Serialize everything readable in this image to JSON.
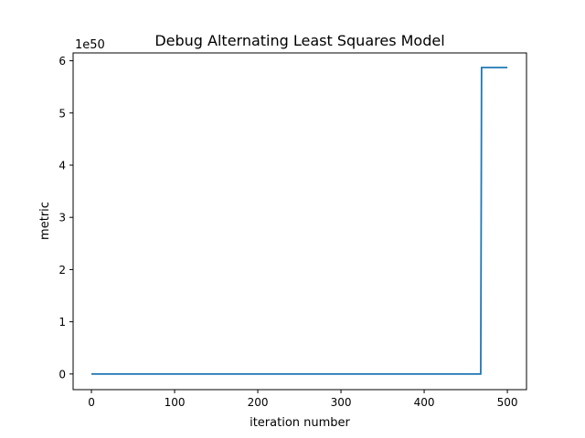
{
  "chart_data": {
    "type": "line",
    "title": "Debug Alternating Least Squares Model",
    "xlabel": "iteration number",
    "ylabel": "metric",
    "y_offset_label": "1e50",
    "xlim": [
      -22,
      523
    ],
    "ylim": [
      -0.3,
      6.15
    ],
    "x_ticks": [
      0,
      100,
      200,
      300,
      400,
      500
    ],
    "x_tick_labels": [
      "0",
      "100",
      "200",
      "300",
      "400",
      "500"
    ],
    "y_ticks": [
      0,
      1,
      2,
      3,
      4,
      5,
      6
    ],
    "y_tick_labels": [
      "0",
      "1",
      "2",
      "3",
      "4",
      "5",
      "6"
    ],
    "grid": false,
    "series": [
      {
        "color": "#1f77b4",
        "x": [
          0,
          468,
          469,
          500
        ],
        "y": [
          0,
          0,
          5.87,
          5.87
        ]
      }
    ]
  }
}
